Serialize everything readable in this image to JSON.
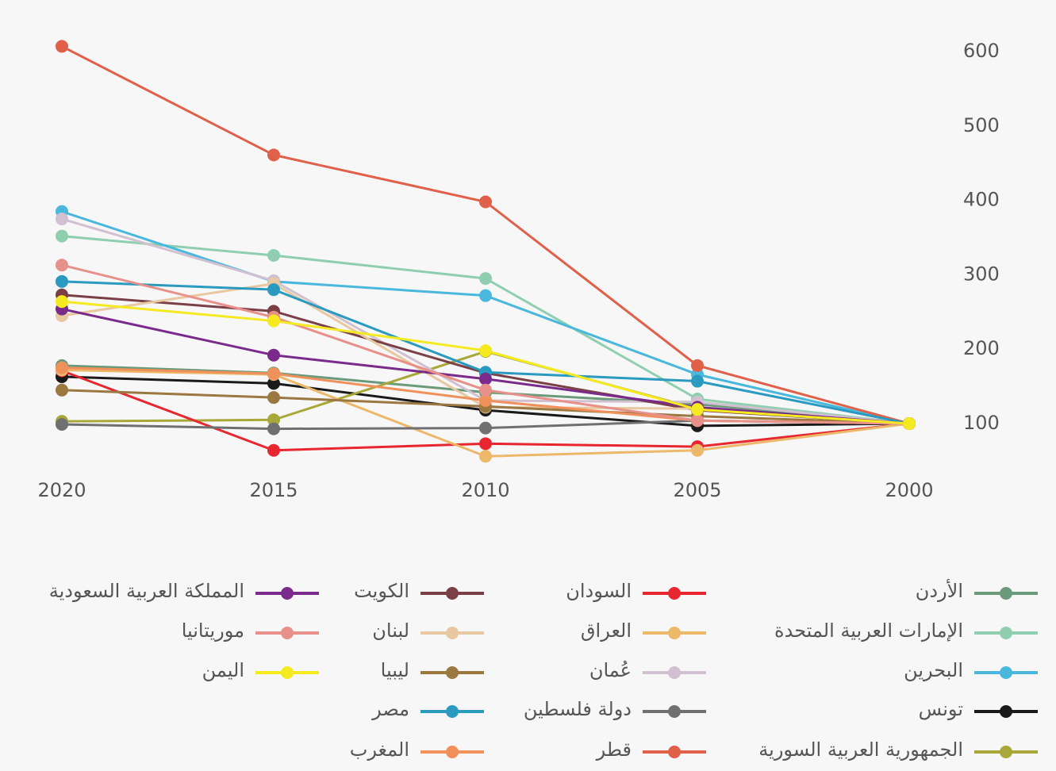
{
  "chart_data": {
    "type": "line",
    "x": [
      2000,
      2005,
      2010,
      2015,
      2020
    ],
    "xlim": [
      2020,
      2000
    ],
    "xticks": [
      2020,
      2015,
      2010,
      2005,
      2000
    ],
    "ylim": [
      50,
      650
    ],
    "yticks": [
      100,
      200,
      300,
      400,
      500,
      600
    ],
    "grid": false,
    "legend": "bottom",
    "series": [
      {
        "name": "الأردن",
        "color": "#6a9a7a",
        "values": [
          100,
          126,
          142,
          168,
          178
        ]
      },
      {
        "name": "الإمارات العربية المتحدة",
        "color": "#8fcfb0",
        "values": [
          100,
          133,
          295,
          326,
          352
        ]
      },
      {
        "name": "البحرين",
        "color": "#4ab8dc",
        "values": [
          100,
          166,
          272,
          291,
          385
        ]
      },
      {
        "name": "تونس",
        "color": "#1a1a1a",
        "values": [
          100,
          97,
          118,
          154,
          163
        ]
      },
      {
        "name": "الجمهورية العربية السورية",
        "color": "#a8a838",
        "values": [
          100,
          120,
          197,
          105,
          103
        ]
      },
      {
        "name": "السودان",
        "color": "#e8262f",
        "values": [
          100,
          69,
          73,
          64,
          171
        ]
      },
      {
        "name": "العراق",
        "color": "#ecb86a",
        "values": [
          100,
          64,
          56,
          166,
          172
        ]
      },
      {
        "name": "عُمان",
        "color": "#d0c0d0",
        "values": [
          100,
          129,
          131,
          292,
          375
        ]
      },
      {
        "name": "دولة فلسطين",
        "color": "#707070",
        "values": [
          100,
          104,
          94,
          93,
          99
        ]
      },
      {
        "name": "قطر",
        "color": "#e0604a",
        "values": [
          100,
          178,
          398,
          461,
          607
        ]
      },
      {
        "name": "الكويت",
        "color": "#7a4045",
        "values": [
          100,
          118,
          168,
          251,
          273
        ]
      },
      {
        "name": "لبنان",
        "color": "#e8c8a0",
        "values": [
          100,
          120,
          122,
          288,
          245
        ]
      },
      {
        "name": "ليبيا",
        "color": "#9a7840",
        "values": [
          100,
          110,
          123,
          135,
          145
        ]
      },
      {
        "name": "مصر",
        "color": "#2a9ac0",
        "values": [
          100,
          157,
          169,
          280,
          291
        ]
      },
      {
        "name": "المغرب",
        "color": "#f0905a",
        "values": [
          100,
          104,
          131,
          167,
          175
        ]
      },
      {
        "name": "المملكة العربية السعودية",
        "color": "#7a2a8a",
        "values": [
          100,
          122,
          160,
          192,
          254
        ]
      },
      {
        "name": "موريتانيا",
        "color": "#e8908a",
        "values": [
          100,
          104,
          145,
          243,
          313
        ]
      },
      {
        "name": "اليمن",
        "color": "#f5ea20",
        "values": [
          100,
          119,
          198,
          238,
          264
        ]
      }
    ]
  }
}
